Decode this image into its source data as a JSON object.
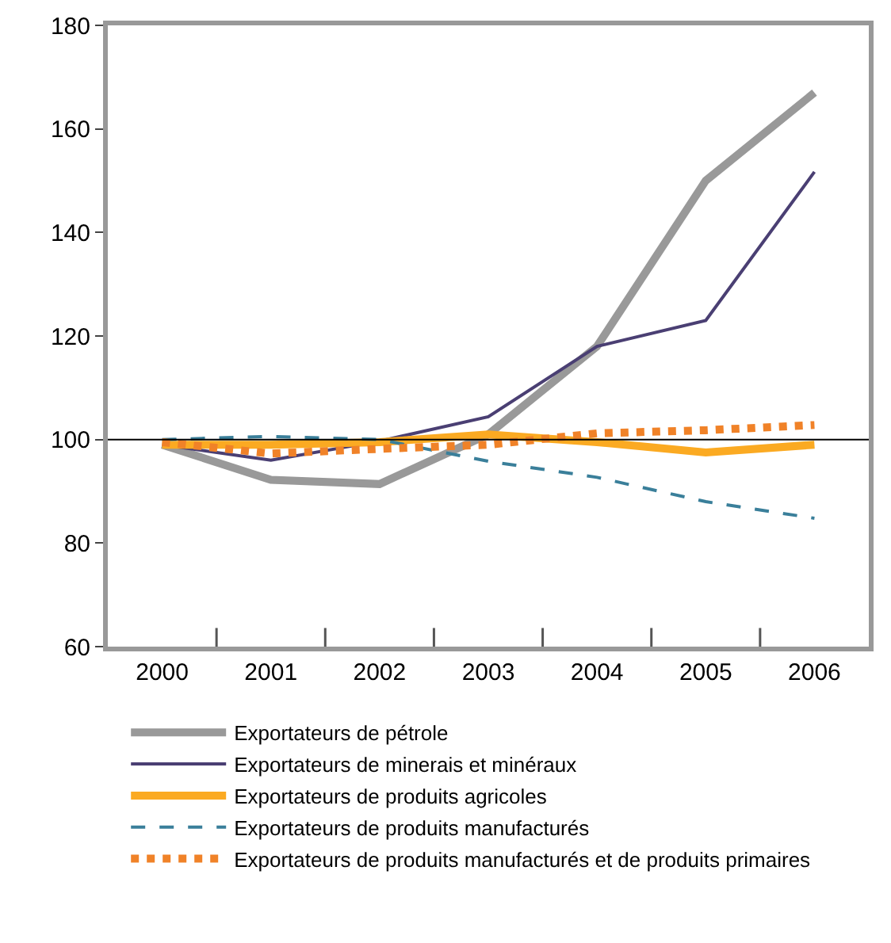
{
  "chart_data": {
    "type": "line",
    "categories": [
      "2000",
      "2001",
      "2002",
      "2003",
      "2004",
      "2005",
      "2006"
    ],
    "ylim": [
      60,
      180
    ],
    "yticks": [
      60,
      80,
      100,
      120,
      140,
      160,
      180
    ],
    "grid": false,
    "legend": "bottom",
    "marker": "none",
    "ref_lines": [
      {
        "axis": "y",
        "value": 100,
        "color": "#000000"
      }
    ],
    "series": [
      {
        "name": "Exportateurs de pétrole",
        "color": "#999999",
        "line_style": "solid",
        "values": [
          99,
          92.2,
          91.4,
          101,
          118,
          150,
          167
        ]
      },
      {
        "name": "Exportateurs de minerais et minéraux",
        "color": "#4a3f73",
        "line_style": "solid",
        "values": [
          99,
          96,
          99.7,
          104.4,
          118,
          123,
          151.7
        ]
      },
      {
        "name": "Exportateurs de produits agricoles",
        "color": "#fbaa22",
        "line_style": "solid",
        "values": [
          99,
          99,
          99.5,
          101,
          99.5,
          97.5,
          99
        ]
      },
      {
        "name": "Exportateurs de produits manufacturés",
        "color": "#3a7f9a",
        "line_style": "dashed",
        "values": [
          100,
          100.6,
          100,
          95.8,
          92.7,
          88,
          84.8
        ]
      },
      {
        "name": "Exportateurs de produits manufacturés et de produits primaires",
        "color": "#f08228",
        "line_style": "dotted",
        "values": [
          99.5,
          97.3,
          98.2,
          99,
          101.2,
          101.8,
          102.8
        ]
      }
    ]
  }
}
